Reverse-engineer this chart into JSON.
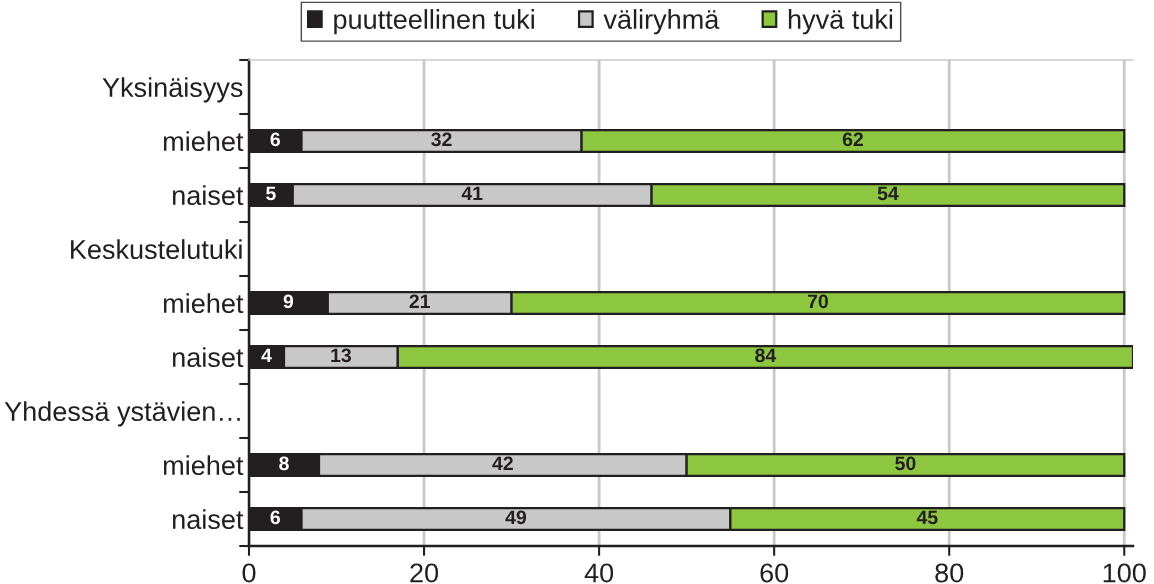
{
  "chart_data": {
    "type": "bar",
    "orientation": "horizontal",
    "stacked": true,
    "categories": [
      "Yksinäisyys",
      "miehet",
      "naiset",
      "Keskustelutuki",
      "miehet",
      "naiset",
      "Yhdessä ystävien…",
      "miehet",
      "naiset"
    ],
    "series": [
      {
        "name": "puutteellinen tuki",
        "color": "#231f20",
        "values": [
          null,
          6,
          5,
          null,
          9,
          4,
          null,
          8,
          6
        ]
      },
      {
        "name": "väliryhmä",
        "color": "#c8c8c8",
        "values": [
          null,
          32,
          41,
          null,
          21,
          13,
          null,
          42,
          49
        ]
      },
      {
        "name": "hyvä tuki",
        "color": "#8dc63f",
        "values": [
          null,
          62,
          54,
          null,
          70,
          84,
          null,
          50,
          45
        ]
      }
    ],
    "xlim": [
      0,
      101
    ],
    "xticks": [
      0,
      20,
      40,
      60,
      80,
      100
    ],
    "grid": "x",
    "legend": "top",
    "data_labels": true
  }
}
